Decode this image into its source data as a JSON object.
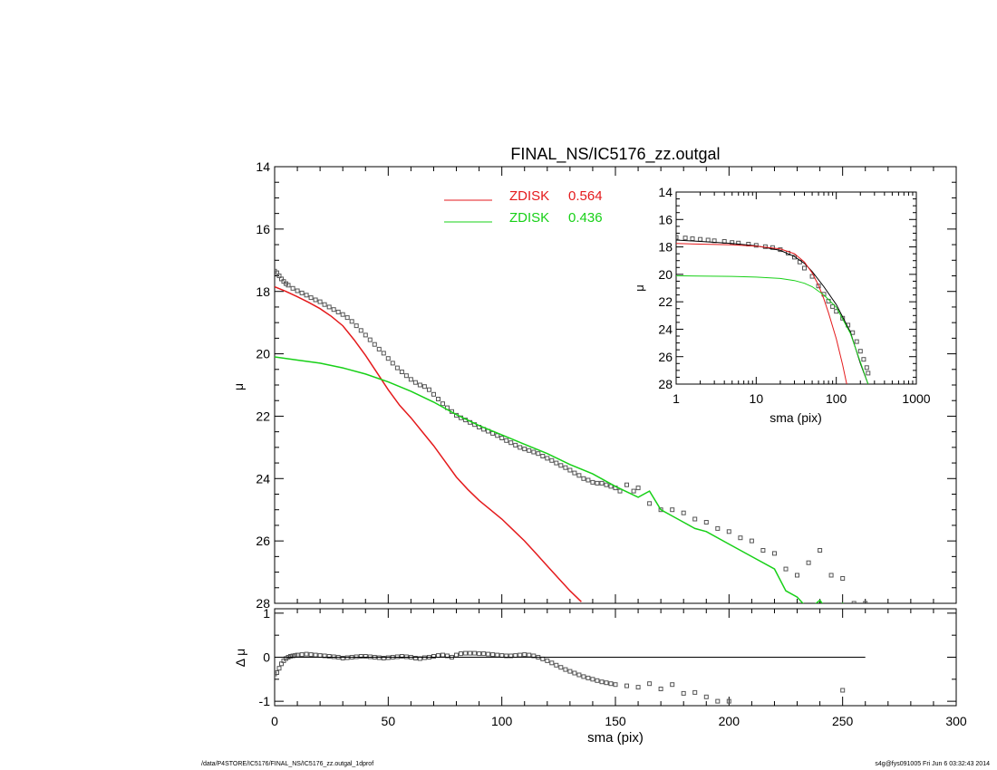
{
  "chart_data": [
    {
      "id": "main",
      "type": "scatter",
      "title": "FINAL_NS/IC5176_zz.outgal",
      "xlabel": "",
      "ylabel": "μ",
      "xlim": [
        0,
        300
      ],
      "ylim": [
        28,
        14
      ],
      "xscale": "linear",
      "x_tick_labels": [
        "0",
        "50",
        "100",
        "150",
        "200",
        "250",
        "300"
      ],
      "y_tick_labels": [
        "14",
        "16",
        "18",
        "20",
        "22",
        "24",
        "26",
        "28"
      ],
      "legend_placement": "top-center",
      "legend": [
        {
          "name": "ZDISK",
          "value": "0.564",
          "color": "#e41a1c"
        },
        {
          "name": "ZDISK",
          "value": "0.436",
          "color": "#17d017"
        }
      ],
      "series": [
        {
          "kind": "points",
          "color": "#555555",
          "x": [
            0,
            1,
            2,
            3,
            4,
            5,
            6,
            8,
            10,
            12,
            14,
            16,
            18,
            20,
            22,
            24,
            26,
            28,
            30,
            32,
            34,
            36,
            38,
            40,
            42,
            44,
            46,
            48,
            50,
            52,
            54,
            56,
            58,
            60,
            62,
            64,
            66,
            68,
            70,
            72,
            74,
            76,
            78,
            80,
            82,
            84,
            86,
            88,
            90,
            92,
            94,
            96,
            98,
            100,
            102,
            104,
            106,
            108,
            110,
            112,
            114,
            116,
            118,
            120,
            122,
            124,
            126,
            128,
            130,
            132,
            134,
            136,
            138,
            140,
            142,
            144,
            146,
            148,
            150,
            152,
            155,
            158,
            160,
            165,
            170,
            175,
            180,
            185,
            190,
            195,
            200,
            205,
            210,
            215,
            220,
            225,
            230,
            235,
            240,
            245,
            250,
            255,
            260
          ],
          "y": [
            17.35,
            17.4,
            17.5,
            17.6,
            17.68,
            17.75,
            17.8,
            17.9,
            17.98,
            18.05,
            18.12,
            18.2,
            18.27,
            18.33,
            18.42,
            18.5,
            18.58,
            18.66,
            18.74,
            18.84,
            18.96,
            19.1,
            19.25,
            19.4,
            19.55,
            19.7,
            19.85,
            19.98,
            20.15,
            20.3,
            20.45,
            20.58,
            20.7,
            20.82,
            20.92,
            21.0,
            21.05,
            21.15,
            21.3,
            21.45,
            21.6,
            21.73,
            21.85,
            21.97,
            22.05,
            22.12,
            22.2,
            22.27,
            22.35,
            22.42,
            22.48,
            22.55,
            22.62,
            22.7,
            22.78,
            22.85,
            22.93,
            23.0,
            23.05,
            23.1,
            23.15,
            23.2,
            23.28,
            23.35,
            23.42,
            23.5,
            23.58,
            23.65,
            23.73,
            23.82,
            23.9,
            24.0,
            24.05,
            24.12,
            24.15,
            24.15,
            24.2,
            24.25,
            24.3,
            24.4,
            24.2,
            24.4,
            24.3,
            24.8,
            25.0,
            25.0,
            25.1,
            25.3,
            25.4,
            25.6,
            25.7,
            25.9,
            26.0,
            26.3,
            26.4,
            26.9,
            27.1,
            26.7,
            26.3,
            27.1,
            27.2,
            28.0,
            28.0
          ]
        },
        {
          "kind": "line",
          "color": "#e41a1c",
          "x": [
            0,
            5,
            10,
            15,
            20,
            25,
            30,
            35,
            40,
            45,
            50,
            55,
            60,
            65,
            70,
            75,
            80,
            85,
            90,
            95,
            100,
            105,
            110,
            115,
            120,
            125,
            130,
            135
          ],
          "y": [
            17.85,
            18.0,
            18.17,
            18.35,
            18.55,
            18.8,
            19.1,
            19.55,
            20.05,
            20.6,
            21.15,
            21.65,
            22.05,
            22.5,
            22.95,
            23.45,
            23.95,
            24.35,
            24.7,
            25.0,
            25.3,
            25.65,
            26.0,
            26.4,
            26.8,
            27.2,
            27.6,
            27.95
          ]
        },
        {
          "kind": "line",
          "color": "#17d017",
          "x": [
            0,
            10,
            20,
            30,
            40,
            50,
            60,
            70,
            80,
            90,
            100,
            110,
            120,
            130,
            140,
            150,
            160,
            165,
            170,
            175,
            180,
            185,
            190,
            200,
            210,
            220,
            225,
            230,
            235,
            240,
            245,
            250,
            255
          ],
          "y": [
            20.1,
            20.2,
            20.3,
            20.45,
            20.65,
            20.9,
            21.2,
            21.55,
            21.95,
            22.3,
            22.6,
            22.9,
            23.2,
            23.55,
            23.85,
            24.25,
            24.6,
            24.4,
            25.0,
            25.2,
            25.4,
            25.6,
            25.7,
            26.1,
            26.5,
            26.9,
            27.6,
            27.8,
            28.2,
            27.9,
            28.4,
            28.0,
            28.4
          ]
        }
      ]
    },
    {
      "id": "inset",
      "type": "scatter",
      "title": "",
      "xlabel": "sma (pix)",
      "ylabel": "μ",
      "xlim": [
        1,
        1000
      ],
      "ylim": [
        28,
        14
      ],
      "xscale": "log",
      "x_tick_labels": [
        "1",
        "10",
        "100",
        "1000"
      ],
      "y_tick_labels": [
        "14",
        "16",
        "18",
        "20",
        "22",
        "24",
        "26",
        "28"
      ],
      "series": [
        {
          "kind": "points",
          "color": "#555555",
          "x": [
            1.0,
            1.3,
            1.6,
            2,
            2.5,
            3,
            4,
            5,
            6,
            8,
            10,
            13,
            16,
            20,
            25,
            30,
            35,
            40,
            50,
            60,
            70,
            80,
            90,
            100,
            120,
            140,
            160,
            180,
            200,
            220,
            240,
            250
          ],
          "y": [
            17.3,
            17.35,
            17.4,
            17.45,
            17.5,
            17.55,
            17.6,
            17.68,
            17.72,
            17.8,
            17.88,
            17.98,
            18.05,
            18.2,
            18.45,
            18.75,
            19.1,
            19.55,
            20.15,
            20.85,
            21.45,
            21.95,
            22.35,
            22.7,
            23.2,
            23.7,
            24.25,
            24.9,
            25.6,
            26.2,
            26.8,
            27.2
          ]
        },
        {
          "kind": "line",
          "color": "#000000",
          "x": [
            1,
            2,
            5,
            10,
            20,
            30,
            40,
            50,
            70,
            100,
            150,
            200,
            250
          ],
          "y": [
            17.5,
            17.6,
            17.75,
            17.92,
            18.25,
            18.7,
            19.2,
            19.8,
            20.9,
            22.2,
            24.2,
            26.5,
            28.0
          ]
        },
        {
          "kind": "line",
          "color": "#e41a1c",
          "x": [
            1,
            2,
            5,
            10,
            20,
            30,
            40,
            50,
            60,
            70,
            80,
            100,
            120,
            135
          ],
          "y": [
            17.75,
            17.8,
            17.85,
            17.95,
            18.15,
            18.5,
            19.1,
            19.9,
            20.8,
            21.8,
            22.8,
            24.7,
            26.6,
            28.0
          ]
        },
        {
          "kind": "line",
          "color": "#17d017",
          "x": [
            1,
            2,
            5,
            10,
            20,
            30,
            40,
            50,
            70,
            100,
            150,
            200,
            250
          ],
          "y": [
            20.1,
            20.12,
            20.15,
            20.2,
            20.3,
            20.45,
            20.65,
            20.9,
            21.5,
            22.4,
            24.3,
            26.4,
            28.0
          ]
        }
      ]
    },
    {
      "id": "residual",
      "type": "scatter",
      "title": "",
      "xlabel": "sma (pix)",
      "ylabel": "Δ μ",
      "xlim": [
        0,
        300
      ],
      "ylim": [
        -1.1,
        1.1
      ],
      "xscale": "linear",
      "x_tick_labels": [
        "0",
        "50",
        "100",
        "150",
        "200",
        "250",
        "300"
      ],
      "y_tick_labels": [
        "1",
        "0",
        "-1"
      ],
      "series": [
        {
          "kind": "points",
          "color": "#555555",
          "x": [
            0,
            1,
            2,
            3,
            4,
            5,
            6,
            7,
            8,
            9,
            10,
            12,
            14,
            16,
            18,
            20,
            22,
            24,
            26,
            28,
            30,
            32,
            34,
            36,
            38,
            40,
            42,
            44,
            46,
            48,
            50,
            52,
            54,
            56,
            58,
            60,
            62,
            64,
            66,
            68,
            70,
            72,
            74,
            76,
            78,
            80,
            82,
            84,
            86,
            88,
            90,
            92,
            94,
            96,
            98,
            100,
            102,
            104,
            106,
            108,
            110,
            112,
            114,
            116,
            118,
            120,
            122,
            124,
            126,
            128,
            130,
            132,
            134,
            136,
            138,
            140,
            142,
            144,
            146,
            148,
            150,
            155,
            160,
            165,
            170,
            175,
            180,
            185,
            190,
            195,
            200,
            250
          ],
          "y": [
            -0.38,
            -0.35,
            -0.25,
            -0.15,
            -0.08,
            -0.03,
            0.0,
            0.02,
            0.03,
            0.04,
            0.05,
            0.06,
            0.07,
            0.06,
            0.05,
            0.04,
            0.03,
            0.02,
            0.01,
            0.0,
            -0.02,
            -0.01,
            0.0,
            0.01,
            0.02,
            0.02,
            0.01,
            0.0,
            -0.01,
            -0.02,
            -0.01,
            0.0,
            0.01,
            0.02,
            0.01,
            0.0,
            -0.02,
            -0.03,
            -0.01,
            0.0,
            0.02,
            0.04,
            0.05,
            0.03,
            0.0,
            0.05,
            0.08,
            0.09,
            0.09,
            0.09,
            0.08,
            0.08,
            0.07,
            0.06,
            0.05,
            0.04,
            0.03,
            0.03,
            0.04,
            0.05,
            0.06,
            0.05,
            0.03,
            0.0,
            -0.04,
            -0.08,
            -0.13,
            -0.18,
            -0.23,
            -0.28,
            -0.32,
            -0.36,
            -0.4,
            -0.44,
            -0.47,
            -0.5,
            -0.53,
            -0.56,
            -0.58,
            -0.6,
            -0.62,
            -0.65,
            -0.68,
            -0.6,
            -0.72,
            -0.62,
            -0.82,
            -0.8,
            -0.9,
            -1.0,
            -1.0,
            -0.75
          ]
        },
        {
          "kind": "line",
          "color": "#000000",
          "x": [
            0,
            260
          ],
          "y": [
            0,
            0
          ]
        }
      ]
    }
  ],
  "footer": {
    "path": "/data/P4STORE/IC5176/FINAL_NS/IC5176_zz.outgal_1dprof",
    "stamp": "s4g@fys091005  Fri Jun  6 03:32:43 2014"
  }
}
